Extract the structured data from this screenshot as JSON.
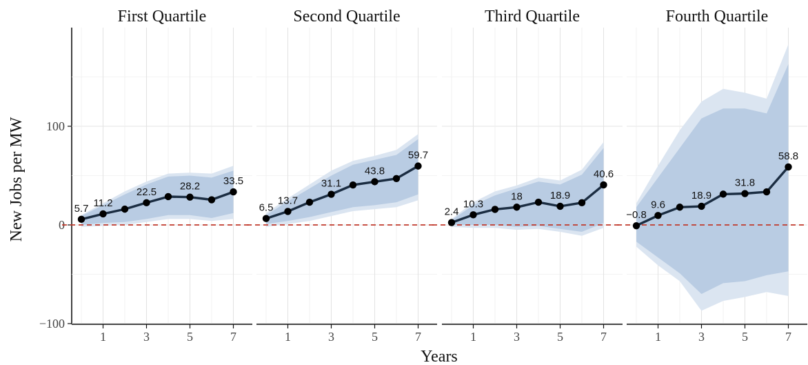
{
  "chart_data": {
    "type": "line",
    "xlabel": "Years",
    "ylabel": "New Jobs per MW",
    "xlim": [
      -0.5,
      7.3
    ],
    "ylim": [
      -100,
      200
    ],
    "y_ticks": [
      -100,
      0,
      100
    ],
    "x_ticks": [
      1,
      3,
      5,
      7
    ],
    "reference_line": {
      "y": 0,
      "style": "dashed",
      "color": "#c0392b"
    },
    "grid": true,
    "colors": {
      "line": "#1b2d42",
      "point": "#000000",
      "ci_outer": "#dbe5f1",
      "ci_inner": "#b9cce3",
      "reference": "#c0392b"
    },
    "panels": [
      {
        "title": "First Quartile",
        "x": [
          0,
          1,
          2,
          3,
          4,
          5,
          6,
          7
        ],
        "y": [
          5.7,
          11.2,
          16,
          22.5,
          28.7,
          28.2,
          25.5,
          33.5
        ],
        "ci_outer_upper": [
          10,
          22,
          34,
          44,
          52,
          53,
          52,
          60
        ],
        "ci_outer_lower": [
          -2,
          -1,
          0,
          3,
          6,
          6,
          4,
          6
        ],
        "ci_inner_upper": [
          9,
          20,
          31,
          41,
          49,
          50,
          48,
          55
        ],
        "ci_inner_lower": [
          0,
          2,
          3,
          6,
          10,
          10,
          7,
          12
        ],
        "labeled_index": [
          0,
          1,
          3,
          5,
          7
        ],
        "labels": [
          "5.7",
          "11.2",
          "22.5",
          "28.2",
          "33.5"
        ]
      },
      {
        "title": "Second Quartile",
        "x": [
          0,
          1,
          2,
          3,
          4,
          5,
          6,
          7
        ],
        "y": [
          6.5,
          13.7,
          23,
          31.1,
          40.5,
          43.8,
          47,
          59.7
        ],
        "ci_outer_upper": [
          12,
          27,
          41,
          55,
          65,
          70,
          76,
          92
        ],
        "ci_outer_lower": [
          -2,
          1,
          4,
          9,
          14,
          16,
          18,
          25
        ],
        "ci_inner_upper": [
          10,
          24,
          37,
          50,
          61,
          66,
          71,
          87
        ],
        "ci_inner_lower": [
          1,
          4,
          8,
          13,
          18,
          20,
          23,
          31
        ],
        "labeled_index": [
          0,
          1,
          3,
          5,
          7
        ],
        "labels": [
          "6.5",
          "13.7",
          "31.1",
          "43.8",
          "59.7"
        ]
      },
      {
        "title": "Third Quartile",
        "x": [
          0,
          1,
          2,
          3,
          4,
          5,
          6,
          7
        ],
        "y": [
          2.4,
          10.3,
          15.8,
          18,
          23,
          18.9,
          22.5,
          40.6
        ],
        "ci_outer_upper": [
          6,
          23,
          34,
          40,
          48,
          45,
          56,
          84
        ],
        "ci_outer_lower": [
          -2,
          -3,
          -3,
          -5,
          -4,
          -7,
          -11,
          -3
        ],
        "ci_inner_upper": [
          5,
          20,
          30,
          37,
          44,
          41,
          51,
          78
        ],
        "ci_inner_lower": [
          0,
          0,
          0,
          -2,
          -1,
          -4,
          -7,
          2
        ],
        "labeled_index": [
          0,
          1,
          3,
          5,
          7
        ],
        "labels": [
          "2.4",
          "10.3",
          "18",
          "18.9",
          "40.6"
        ]
      },
      {
        "title": "Fourth Quartile",
        "x": [
          0,
          1,
          2,
          3,
          4,
          5,
          6,
          7
        ],
        "y": [
          -0.8,
          9.6,
          18,
          18.9,
          31.2,
          31.8,
          33.5,
          58.8
        ],
        "ci_outer_upper": [
          22,
          60,
          96,
          125,
          138,
          134,
          128,
          183
        ],
        "ci_outer_lower": [
          -22,
          -41,
          -57,
          -87,
          -77,
          -73,
          -68,
          -72
        ],
        "ci_inner_upper": [
          18,
          48,
          78,
          108,
          118,
          118,
          113,
          163
        ],
        "ci_inner_lower": [
          -17,
          -33,
          -49,
          -70,
          -59,
          -57,
          -51,
          -47
        ],
        "labeled_index": [
          0,
          1,
          3,
          5,
          7
        ],
        "labels": [
          "−0.8",
          "9.6",
          "18.9",
          "31.8",
          "58.8"
        ]
      }
    ]
  }
}
